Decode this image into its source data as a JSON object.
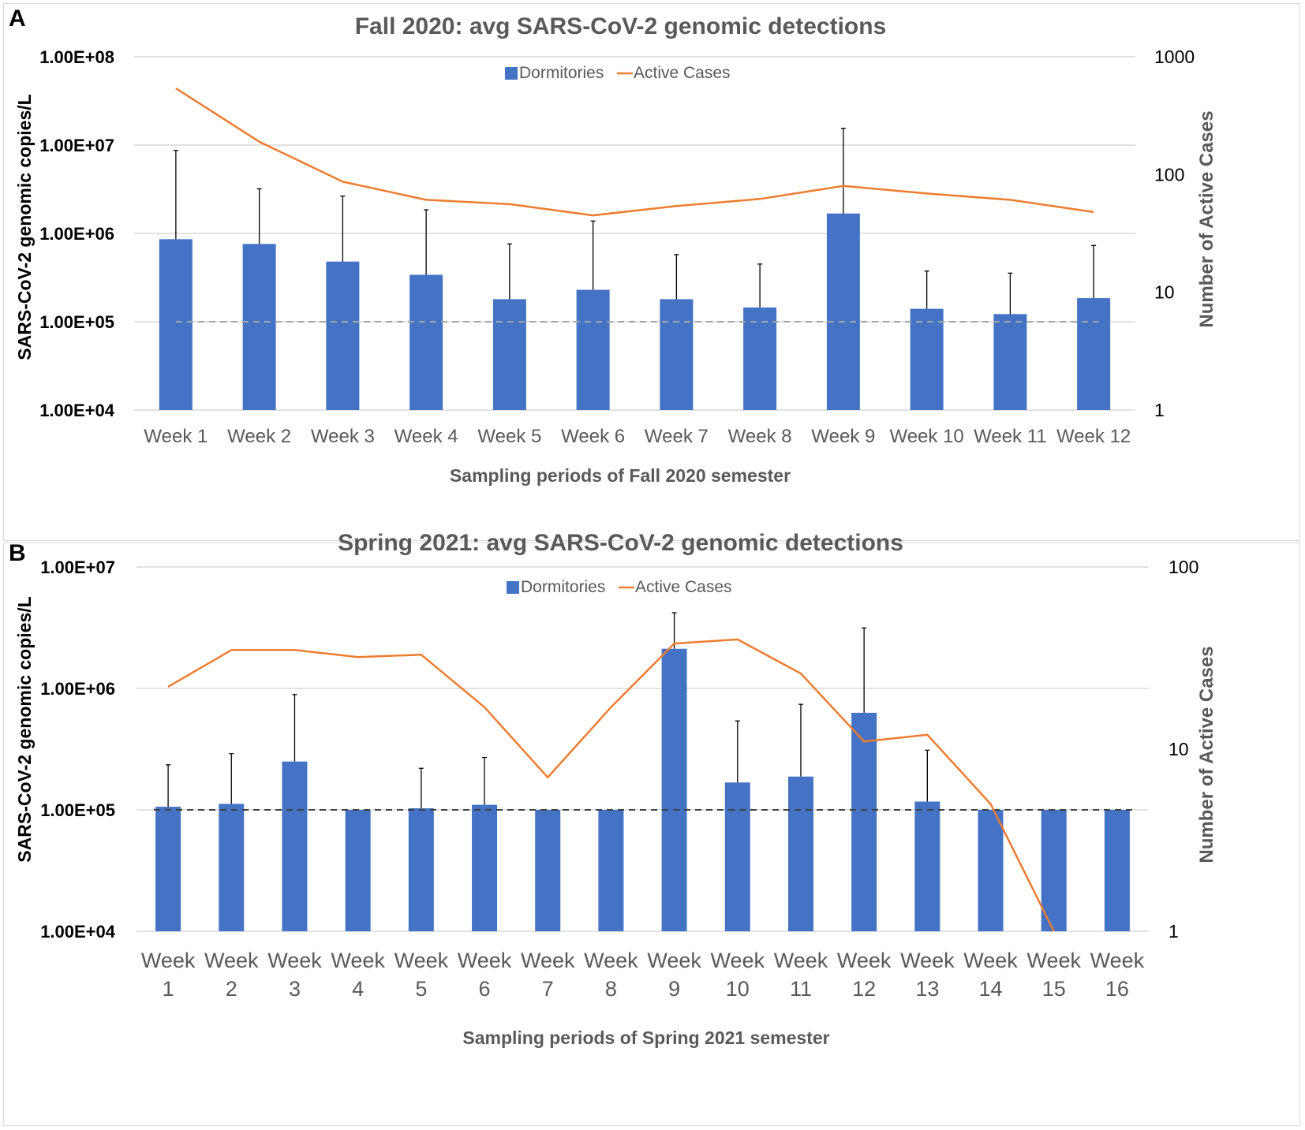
{
  "colors": {
    "bar": "#4472C4",
    "line": "#ED7D31",
    "grid": "#d9d9d9",
    "errorbar": "#000000",
    "text": "#595959"
  },
  "chart_data": [
    {
      "type": "bar",
      "panel_label": "A",
      "title": "Fall 2020: avg SARS-CoV-2 genomic detections",
      "xlabel": "Sampling periods of Fall 2020 semester",
      "ylabel": "SARS-CoV-2 genomic copies/L",
      "y2label": "Number of Active Cases",
      "yscale": "log",
      "ylim": [
        10000,
        100000000
      ],
      "y2lim": [
        1,
        1000
      ],
      "yticks": [
        "1.00E+04",
        "1.00E+05",
        "1.00E+06",
        "1.00E+07",
        "1.00E+08"
      ],
      "y2ticks": [
        "1",
        "10",
        "100",
        "1000"
      ],
      "categories": [
        "Week 1",
        "Week 2",
        "Week 3",
        "Week 4",
        "Week 5",
        "Week 6",
        "Week 7",
        "Week 8",
        "Week 9",
        "Week 10",
        "Week 11",
        "Week 12"
      ],
      "legend": [
        "Dormitories",
        "Active Cases"
      ],
      "threshold": 100000,
      "series": [
        {
          "name": "Dormitories",
          "axis": "left",
          "values": [
            860000,
            760000,
            480000,
            340000,
            180000,
            230000,
            180000,
            145000,
            1680000,
            140000,
            122000,
            185000
          ],
          "error_upper": [
            8700000,
            3200000,
            2650000,
            1850000,
            760000,
            1380000,
            575000,
            450000,
            15500000,
            375000,
            355000,
            730000
          ]
        },
        {
          "name": "Active Cases",
          "axis": "right",
          "values": [
            540,
            190,
            87,
            61,
            56,
            45,
            54,
            62,
            80,
            69,
            61,
            48
          ]
        }
      ]
    },
    {
      "type": "bar",
      "panel_label": "B",
      "title": "Spring 2021: avg SARS-CoV-2 genomic detections",
      "xlabel": "Sampling periods of Spring 2021 semester",
      "ylabel": "SARS-CoV-2 genomic copies/L",
      "y2label": "Number of Active Cases",
      "yscale": "log",
      "ylim": [
        10000,
        10000000
      ],
      "y2lim": [
        1,
        100
      ],
      "yticks": [
        "1.00E+04",
        "1.00E+05",
        "1.00E+06",
        "1.00E+07"
      ],
      "y2ticks": [
        "1",
        "10",
        "100"
      ],
      "categories": [
        [
          "Week",
          "1"
        ],
        [
          "Week",
          "2"
        ],
        [
          "Week",
          "3"
        ],
        [
          "Week",
          "4"
        ],
        [
          "Week",
          "5"
        ],
        [
          "Week",
          "6"
        ],
        [
          "Week",
          "7"
        ],
        [
          "Week",
          "8"
        ],
        [
          "Week",
          "9"
        ],
        [
          "Week",
          "10"
        ],
        [
          "Week",
          "11"
        ],
        [
          "Week",
          "12"
        ],
        [
          "Week",
          "13"
        ],
        [
          "Week",
          "14"
        ],
        [
          "Week",
          "15"
        ],
        [
          "Week",
          "16"
        ]
      ],
      "legend": [
        "Dormitories",
        "Active Cases"
      ],
      "threshold": 100000,
      "series": [
        {
          "name": "Dormitories",
          "axis": "left",
          "values": [
            106000,
            112000,
            250000,
            100000,
            103000,
            110000,
            100000,
            100000,
            2120000,
            168000,
            188000,
            630000,
            117000,
            100000,
            100000,
            100000
          ],
          "error_upper": [
            235000,
            290000,
            890000,
            null,
            220000,
            270000,
            null,
            null,
            4200000,
            540000,
            740000,
            3150000,
            310000,
            null,
            null,
            null
          ]
        },
        {
          "name": "Active Cases",
          "axis": "right",
          "values": [
            22,
            35,
            35,
            32,
            33,
            17,
            7,
            17,
            38,
            40,
            26,
            11,
            12,
            5,
            1,
            null
          ]
        }
      ]
    }
  ]
}
